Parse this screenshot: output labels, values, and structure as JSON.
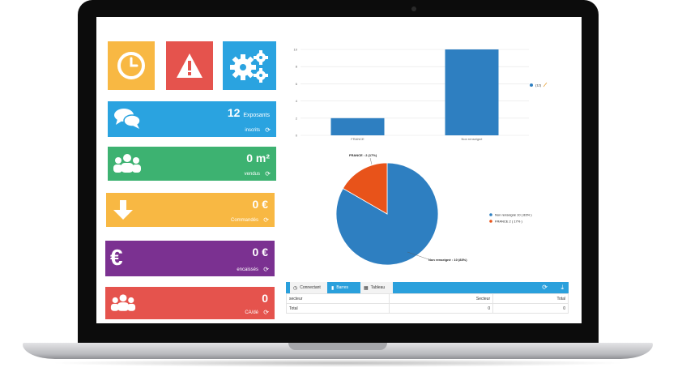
{
  "tiles": {
    "clock_icon": "clock-icon",
    "alert_icon": "warning-icon",
    "settings_icon": "gears-icon",
    "colors": {
      "clock": "#f8b843",
      "alert": "#e5534d",
      "settings": "#2aa3e0"
    }
  },
  "stats": [
    {
      "value": "12",
      "unit": "Exposants",
      "label": "inscrits",
      "icon": "chat-icon",
      "color": "#2aa3e0"
    },
    {
      "value": "0 m²",
      "unit": "",
      "label": "vendus",
      "icon": "users-icon",
      "color": "#3db271"
    },
    {
      "value": "0 €",
      "unit": "",
      "label": "Commandés",
      "icon": "arrow-down-icon",
      "color": "#f8b843"
    },
    {
      "value": "0 €",
      "unit": "",
      "label": "encaissés",
      "icon": "euro-icon",
      "color": "#7b3191"
    },
    {
      "value": "0",
      "unit": "",
      "label": "CA/dé",
      "icon": "users-icon",
      "color": "#e5534d"
    }
  ],
  "chart_data": [
    {
      "type": "bar",
      "categories": [
        "FRANCE",
        "Non renseigné"
      ],
      "values": [
        2,
        10
      ],
      "ylim": [
        0,
        10
      ],
      "yticks": [
        0,
        2,
        4,
        6,
        8,
        10
      ],
      "legend": [
        "(12)"
      ],
      "color": "#2e7fc1"
    },
    {
      "type": "pie",
      "slices": [
        {
          "label": "FRANCE : 2 (17%)",
          "value": 2,
          "color": "#e8531a"
        },
        {
          "label": "Non renseigné : 10 (83%)",
          "value": 10,
          "color": "#2e7fc1"
        }
      ],
      "legend": [
        "Non renseigné 10 ( 83% )",
        "FRANCE 2 ( 17% )"
      ]
    }
  ],
  "tabs": [
    {
      "label": "Connectant",
      "icon": "clock-icon"
    },
    {
      "label": "Barres",
      "icon": "bar-chart-icon"
    },
    {
      "label": "Tableau",
      "icon": "table-icon"
    }
  ],
  "toolbar": {
    "refresh_icon": "refresh-icon",
    "download_icon": "download-icon"
  },
  "table": {
    "headers": [
      "secteur",
      "Secteur",
      "Total"
    ],
    "rows": [
      [
        "Total",
        "0",
        "0"
      ]
    ]
  }
}
